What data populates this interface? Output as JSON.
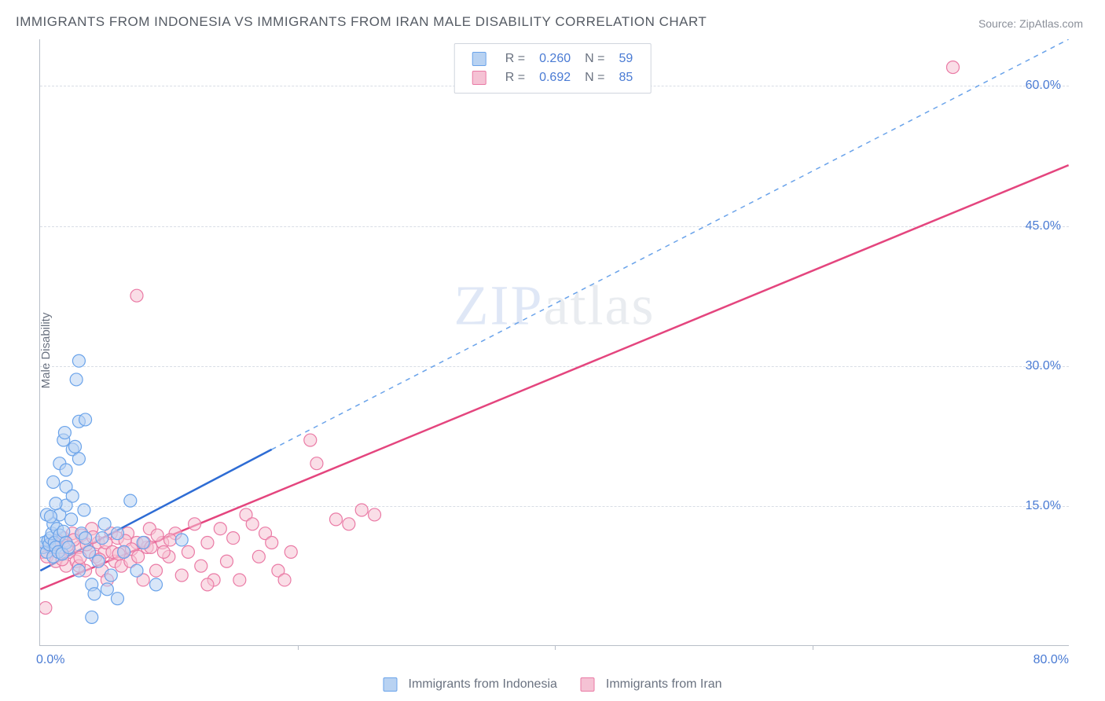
{
  "title": "IMMIGRANTS FROM INDONESIA VS IMMIGRANTS FROM IRAN MALE DISABILITY CORRELATION CHART",
  "source_label": "Source: ZipAtlas.com",
  "ylabel": "Male Disability",
  "watermark": {
    "part1": "ZIP",
    "part2": "atlas"
  },
  "chart": {
    "type": "scatter",
    "xlim": [
      0,
      80
    ],
    "ylim": [
      0,
      65
    ],
    "y_ticks": [
      15.0,
      30.0,
      45.0,
      60.0
    ],
    "y_tick_labels": [
      "15.0%",
      "30.0%",
      "45.0%",
      "60.0%"
    ],
    "x_ticks": [
      0,
      40,
      80
    ],
    "x_tick_labels_shown": {
      "left": "0.0%",
      "right": "80.0%"
    },
    "x_minor_ticks": [
      20,
      40,
      60
    ],
    "grid_color": "#d8dde5",
    "axis_color": "#b8bec8",
    "background_color": "#ffffff",
    "series": [
      {
        "name": "Immigrants from Indonesia",
        "color_fill": "#b8d2f2",
        "color_stroke": "#6aa3ea",
        "marker_radius": 8,
        "fill_opacity": 0.55,
        "R": "0.260",
        "N": "59",
        "trend": {
          "x1": 0,
          "y1": 8,
          "x2": 18,
          "y2": 21,
          "extend_x2": 80,
          "extend_y2": 65,
          "solid_color": "#2e6cd4",
          "dash_color": "#6aa3ea"
        },
        "points": [
          [
            0.2,
            10.5
          ],
          [
            0.3,
            11.0
          ],
          [
            0.5,
            10.0
          ],
          [
            0.6,
            11.2
          ],
          [
            0.7,
            10.8
          ],
          [
            0.8,
            11.5
          ],
          [
            0.9,
            12.0
          ],
          [
            1.0,
            9.5
          ],
          [
            1.0,
            13.0
          ],
          [
            1.1,
            11.0
          ],
          [
            1.2,
            10.5
          ],
          [
            1.3,
            12.5
          ],
          [
            1.4,
            10.0
          ],
          [
            1.5,
            11.8
          ],
          [
            1.5,
            14.0
          ],
          [
            1.7,
            9.8
          ],
          [
            1.8,
            12.2
          ],
          [
            2.0,
            11.0
          ],
          [
            2.0,
            15.0
          ],
          [
            2.2,
            10.5
          ],
          [
            2.4,
            13.5
          ],
          [
            2.5,
            21.0
          ],
          [
            2.7,
            21.3
          ],
          [
            3.0,
            8.0
          ],
          [
            3.0,
            20.0
          ],
          [
            3.2,
            12.0
          ],
          [
            3.4,
            14.5
          ],
          [
            3.5,
            11.5
          ],
          [
            3.0,
            24.0
          ],
          [
            3.5,
            24.2
          ],
          [
            1.8,
            22.0
          ],
          [
            1.9,
            22.8
          ],
          [
            2.0,
            17.0
          ],
          [
            3.0,
            30.5
          ],
          [
            2.8,
            28.5
          ],
          [
            4.0,
            6.5
          ],
          [
            4.0,
            3.0
          ],
          [
            4.5,
            9.0
          ],
          [
            4.8,
            11.5
          ],
          [
            5.0,
            13.0
          ],
          [
            5.5,
            7.5
          ],
          [
            6.0,
            5.0
          ],
          [
            6.5,
            10.0
          ],
          [
            7.0,
            15.5
          ],
          [
            7.5,
            8.0
          ],
          [
            8.0,
            11.0
          ],
          [
            9.0,
            6.5
          ],
          [
            11.0,
            11.3
          ],
          [
            1.0,
            17.5
          ],
          [
            1.5,
            19.5
          ],
          [
            0.5,
            14.0
          ],
          [
            2.0,
            18.8
          ],
          [
            2.5,
            16.0
          ],
          [
            0.8,
            13.8
          ],
          [
            1.2,
            15.2
          ],
          [
            3.8,
            10.0
          ],
          [
            4.2,
            5.5
          ],
          [
            5.2,
            6.0
          ],
          [
            6.0,
            12.0
          ]
        ]
      },
      {
        "name": "Immigrants from Iran",
        "color_fill": "#f5c2d4",
        "color_stroke": "#ea7aa5",
        "marker_radius": 8,
        "fill_opacity": 0.55,
        "R": "0.692",
        "N": "85",
        "trend": {
          "x1": 0,
          "y1": 6,
          "x2": 80,
          "y2": 51.5,
          "solid_color": "#e4457e"
        },
        "points": [
          [
            0.2,
            10.0
          ],
          [
            0.5,
            9.5
          ],
          [
            0.8,
            10.5
          ],
          [
            1.0,
            11.0
          ],
          [
            1.2,
            9.0
          ],
          [
            1.5,
            10.2
          ],
          [
            1.8,
            11.5
          ],
          [
            2.0,
            8.5
          ],
          [
            2.3,
            10.0
          ],
          [
            2.5,
            12.0
          ],
          [
            2.8,
            9.0
          ],
          [
            3.0,
            10.5
          ],
          [
            3.2,
            11.8
          ],
          [
            3.5,
            8.0
          ],
          [
            3.8,
            10.0
          ],
          [
            4.0,
            12.5
          ],
          [
            4.3,
            9.5
          ],
          [
            4.5,
            11.0
          ],
          [
            4.8,
            8.0
          ],
          [
            5.0,
            10.0
          ],
          [
            5.2,
            7.0
          ],
          [
            5.5,
            12.0
          ],
          [
            5.8,
            9.0
          ],
          [
            6.0,
            11.5
          ],
          [
            6.3,
            8.5
          ],
          [
            6.5,
            10.0
          ],
          [
            6.8,
            12.0
          ],
          [
            7.0,
            9.0
          ],
          [
            7.5,
            11.0
          ],
          [
            8.0,
            7.0
          ],
          [
            8.3,
            10.5
          ],
          [
            8.5,
            12.5
          ],
          [
            9.0,
            8.0
          ],
          [
            9.5,
            11.0
          ],
          [
            10.0,
            9.5
          ],
          [
            10.5,
            12.0
          ],
          [
            11.0,
            7.5
          ],
          [
            11.5,
            10.0
          ],
          [
            12.0,
            13.0
          ],
          [
            12.5,
            8.5
          ],
          [
            13.0,
            11.0
          ],
          [
            13.5,
            7.0
          ],
          [
            14.0,
            12.5
          ],
          [
            14.5,
            9.0
          ],
          [
            15.0,
            11.5
          ],
          [
            15.5,
            7.0
          ],
          [
            16.0,
            14.0
          ],
          [
            16.5,
            13.0
          ],
          [
            17.0,
            9.5
          ],
          [
            17.5,
            12.0
          ],
          [
            18.0,
            11.0
          ],
          [
            18.5,
            8.0
          ],
          [
            19.0,
            7.0
          ],
          [
            19.5,
            10.0
          ],
          [
            21.0,
            22.0
          ],
          [
            21.5,
            19.5
          ],
          [
            23.0,
            13.5
          ],
          [
            24.0,
            13.0
          ],
          [
            25.0,
            14.5
          ],
          [
            26.0,
            14.0
          ],
          [
            7.5,
            37.5
          ],
          [
            3.0,
            8.5
          ],
          [
            71.0,
            62.0
          ],
          [
            1.0,
            10.8
          ],
          [
            1.3,
            11.3
          ],
          [
            1.7,
            9.2
          ],
          [
            2.1,
            10.7
          ],
          [
            2.6,
            11.3
          ],
          [
            3.1,
            9.4
          ],
          [
            3.6,
            10.8
          ],
          [
            4.1,
            11.6
          ],
          [
            4.6,
            9.2
          ],
          [
            5.1,
            11.0
          ],
          [
            5.6,
            10.0
          ],
          [
            6.1,
            9.8
          ],
          [
            6.6,
            11.2
          ],
          [
            7.1,
            10.3
          ],
          [
            7.6,
            9.5
          ],
          [
            8.1,
            11.0
          ],
          [
            8.6,
            10.5
          ],
          [
            9.1,
            11.8
          ],
          [
            9.6,
            10.0
          ],
          [
            10.1,
            11.3
          ],
          [
            0.4,
            4.0
          ],
          [
            13.0,
            6.5
          ]
        ]
      }
    ]
  },
  "legend_bottom": [
    {
      "label": "Immigrants from Indonesia",
      "fill": "#b8d2f2",
      "stroke": "#6aa3ea"
    },
    {
      "label": "Immigrants from Iran",
      "fill": "#f5c2d4",
      "stroke": "#ea7aa5"
    }
  ]
}
